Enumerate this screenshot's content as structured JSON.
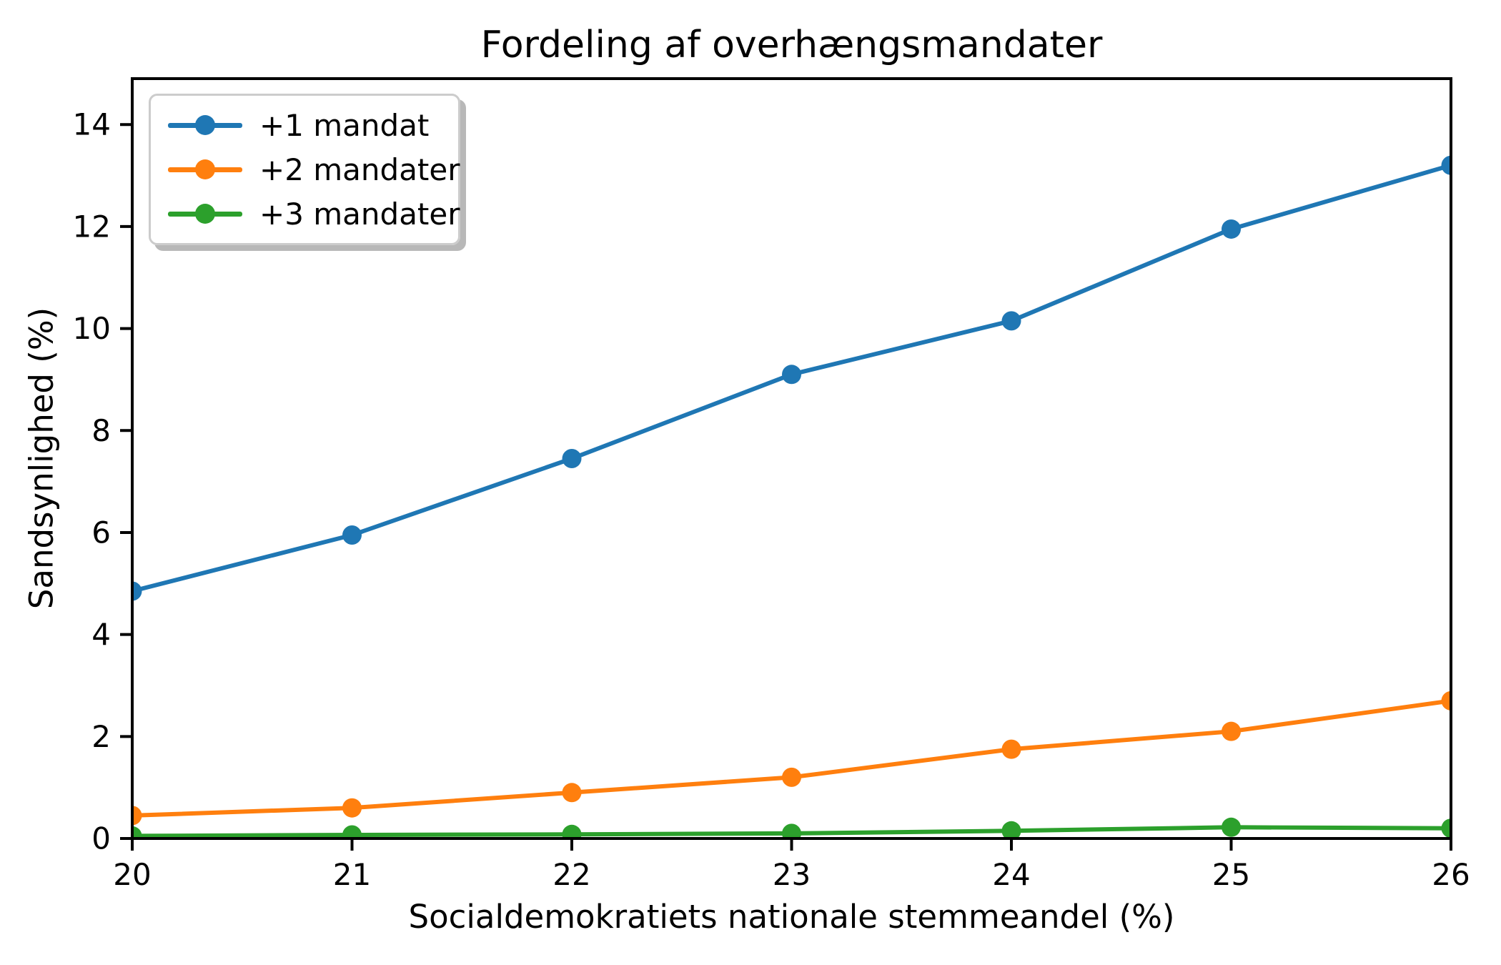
{
  "chart_data": {
    "type": "line",
    "title": "Fordeling af overhængsmandater",
    "xlabel": "Socialdemokratiets nationale stemmeandel (%)",
    "ylabel": "Sandsynlighed (%)",
    "x": [
      20,
      21,
      22,
      23,
      24,
      25,
      26
    ],
    "series": [
      {
        "name": "+1 mandat",
        "color": "#1f77b4",
        "values": [
          4.85,
          5.95,
          7.45,
          9.1,
          10.15,
          11.95,
          13.2
        ]
      },
      {
        "name": "+2 mandater",
        "color": "#ff7f0e",
        "values": [
          0.45,
          0.6,
          0.9,
          1.2,
          1.75,
          2.1,
          2.7
        ]
      },
      {
        "name": "+3 mandater",
        "color": "#2ca02c",
        "values": [
          0.05,
          0.07,
          0.08,
          0.1,
          0.15,
          0.22,
          0.2
        ]
      }
    ],
    "xticks": [
      "20",
      "21",
      "22",
      "23",
      "24",
      "25",
      "26"
    ],
    "xtick_values": [
      20,
      21,
      22,
      23,
      24,
      25,
      26
    ],
    "yticks": [
      "0",
      "2",
      "4",
      "6",
      "8",
      "10",
      "12",
      "14"
    ],
    "ytick_values": [
      0,
      2,
      4,
      6,
      8,
      10,
      12,
      14
    ],
    "xlim": [
      20,
      26
    ],
    "ylim": [
      0,
      14.9
    ],
    "grid": false,
    "legend_position": "upper left",
    "axis_color": "#000000",
    "background_color": "#ffffff"
  }
}
